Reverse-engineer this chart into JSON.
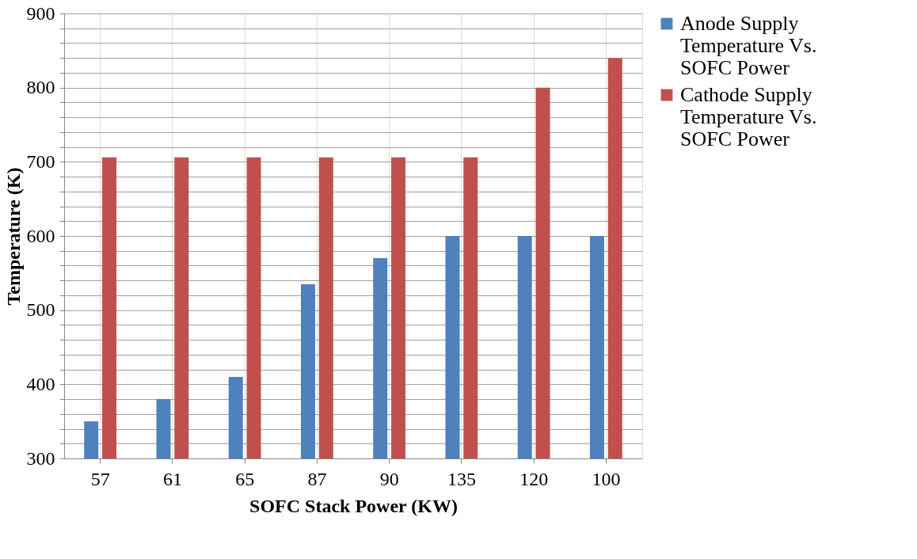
{
  "chart_data": {
    "type": "bar",
    "xlabel": "SOFC Stack Power (KW)",
    "ylabel": "Temperature (K)",
    "categories": [
      "57",
      "61",
      "65",
      "87",
      "90",
      "135",
      "120",
      "100"
    ],
    "series": [
      {
        "name": "Anode Supply Temperature Vs. SOFC Power",
        "color": "#4f81bd",
        "values": [
          350,
          380,
          410,
          535,
          570,
          600,
          600,
          600
        ]
      },
      {
        "name": "Cathode Supply Temperature Vs. SOFC Power",
        "color": "#c0504d",
        "values": [
          706,
          706,
          706,
          706,
          706,
          706,
          800,
          840
        ]
      }
    ],
    "ylim": [
      300,
      900
    ],
    "yticks": [
      300,
      {
        "value": 320,
        "label": null
      },
      {
        "value": 340,
        "label": null
      },
      {
        "value": 360,
        "label": null
      },
      {
        "value": 380,
        "label": null
      },
      400,
      {
        "value": 420,
        "label": null
      },
      {
        "value": 440,
        "label": null
      },
      {
        "value": 460,
        "label": null
      },
      {
        "value": 480,
        "label": null
      },
      500,
      {
        "value": 520,
        "label": null
      },
      {
        "value": 540,
        "label": null
      },
      {
        "value": 560,
        "label": null
      },
      {
        "value": 580,
        "label": null
      },
      600,
      {
        "value": 620,
        "label": null
      },
      {
        "value": 640,
        "label": null
      },
      {
        "value": 660,
        "label": null
      },
      {
        "value": 680,
        "label": null
      },
      700,
      {
        "value": 720,
        "label": null
      },
      {
        "value": 740,
        "label": null
      },
      {
        "value": 760,
        "label": null
      },
      {
        "value": 780,
        "label": null
      },
      800,
      {
        "value": 820,
        "label": null
      },
      {
        "value": 840,
        "label": null
      },
      {
        "value": 860,
        "label": null
      },
      {
        "value": 880,
        "label": null
      },
      900
    ],
    "grid": true,
    "legend": "right"
  }
}
